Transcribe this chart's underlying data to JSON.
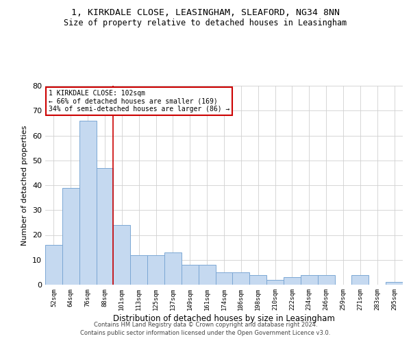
{
  "title1": "1, KIRKDALE CLOSE, LEASINGHAM, SLEAFORD, NG34 8NN",
  "title2": "Size of property relative to detached houses in Leasingham",
  "xlabel": "Distribution of detached houses by size in Leasingham",
  "ylabel": "Number of detached properties",
  "categories": [
    "52sqm",
    "64sqm",
    "76sqm",
    "88sqm",
    "101sqm",
    "113sqm",
    "125sqm",
    "137sqm",
    "149sqm",
    "161sqm",
    "174sqm",
    "186sqm",
    "198sqm",
    "210sqm",
    "222sqm",
    "234sqm",
    "246sqm",
    "259sqm",
    "271sqm",
    "283sqm",
    "295sqm"
  ],
  "values": [
    16,
    39,
    66,
    47,
    24,
    12,
    12,
    13,
    8,
    8,
    5,
    5,
    4,
    2,
    3,
    4,
    4,
    0,
    4,
    0,
    1
  ],
  "bar_color": "#c5d9f0",
  "bar_edge_color": "#7ba7d4",
  "ref_line_index": 4,
  "annotation_title": "1 KIRKDALE CLOSE: 102sqm",
  "annotation_line1": "← 66% of detached houses are smaller (169)",
  "annotation_line2": "34% of semi-detached houses are larger (86) →",
  "annotation_box_color": "#ffffff",
  "annotation_box_edge": "#cc0000",
  "ref_line_color": "#cc0000",
  "ylim": [
    0,
    80
  ],
  "yticks": [
    0,
    10,
    20,
    30,
    40,
    50,
    60,
    70,
    80
  ],
  "footer1": "Contains HM Land Registry data © Crown copyright and database right 2024.",
  "footer2": "Contains public sector information licensed under the Open Government Licence v3.0.",
  "bg_color": "#ffffff",
  "grid_color": "#d0d0d0"
}
